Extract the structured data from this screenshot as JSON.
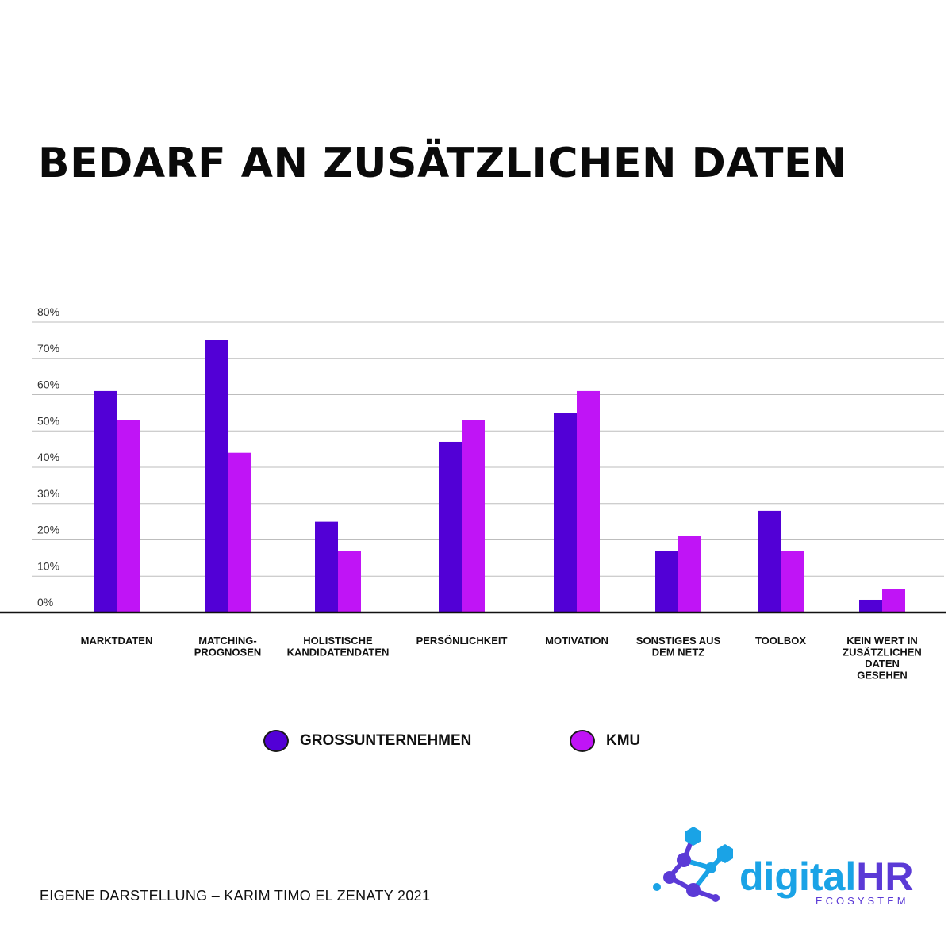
{
  "title": "BEDARF AN ZUSÄTZLICHEN DATEN",
  "source": "EIGENE DARSTELLUNG – KARIM TIMO EL ZENATY 2021",
  "logo": {
    "main_dark": "digital",
    "main_light": "HR",
    "sub": "ECOSYSTEM"
  },
  "colors": {
    "grossunternehmen": "#5200d6",
    "kmu": "#c014f6",
    "logo_blue": "#1aa3e6",
    "logo_purple": "#5b3ad6"
  },
  "chart_data": {
    "type": "bar",
    "categories": [
      [
        "MARKTDATEN"
      ],
      [
        "MATCHING-",
        "PROGNOSEN"
      ],
      [
        "HOLISTISCHE",
        "KANDIDATENDATEN"
      ],
      [
        "PERSÖNLICHKEIT"
      ],
      [
        "MOTIVATION"
      ],
      [
        "SONSTIGES AUS",
        "DEM NETZ"
      ],
      [
        "TOOLBOX"
      ],
      [
        "KEIN WERT IN",
        "ZUSÄTZLICHEN",
        "DATEN",
        "GESEHEN"
      ]
    ],
    "series": [
      {
        "name": "GROSSUNTERNEHMEN",
        "color": "#5200d6",
        "values": [
          61,
          75,
          25,
          47,
          55,
          17,
          28,
          3.5
        ]
      },
      {
        "name": "KMU",
        "color": "#c014f6",
        "values": [
          53,
          44,
          17,
          53,
          61,
          21,
          17,
          6.5
        ]
      }
    ],
    "yticks": [
      "0%",
      "10%",
      "20%",
      "30%",
      "40%",
      "50%",
      "60%",
      "70%",
      "80%"
    ],
    "ylim": [
      0,
      80
    ],
    "grid": true,
    "legend": "bottom"
  }
}
